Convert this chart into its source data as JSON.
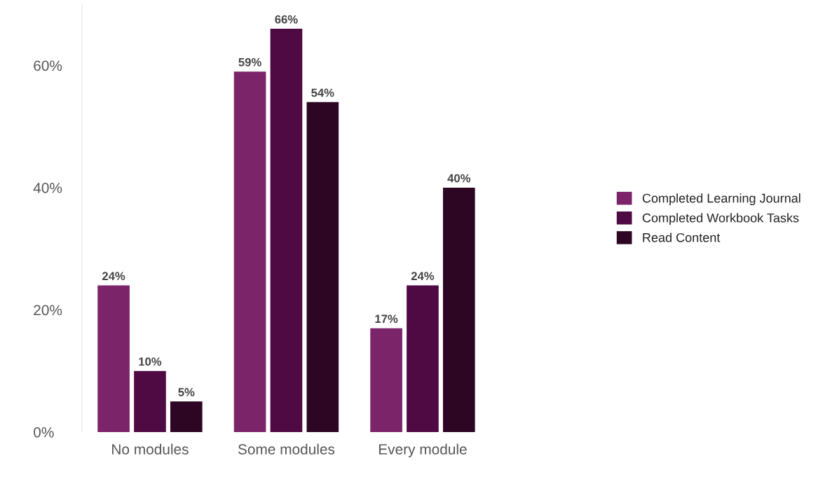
{
  "chart_data": {
    "type": "bar",
    "categories": [
      "No modules",
      "Some modules",
      "Every module"
    ],
    "series": [
      {
        "name": "Completed Learning Journal",
        "color": "#7b2469",
        "values": [
          24,
          59,
          17
        ],
        "value_labels": [
          "24%",
          "59%",
          "17%"
        ]
      },
      {
        "name": "Completed Workbook Tasks",
        "color": "#4f0a43",
        "values": [
          10,
          66,
          24
        ],
        "value_labels": [
          "10%",
          "66%",
          "24%"
        ]
      },
      {
        "name": "Read Content",
        "color": "#2c0623",
        "values": [
          5,
          54,
          40
        ],
        "value_labels": [
          "5%",
          "54%",
          "40%"
        ]
      }
    ],
    "ylim": [
      0,
      70
    ],
    "yticks": [
      {
        "value": 0,
        "label": "0%"
      },
      {
        "value": 20,
        "label": "20%"
      },
      {
        "value": 40,
        "label": "40%"
      },
      {
        "value": 60,
        "label": "60%"
      }
    ],
    "grid": false,
    "legend": "right"
  }
}
